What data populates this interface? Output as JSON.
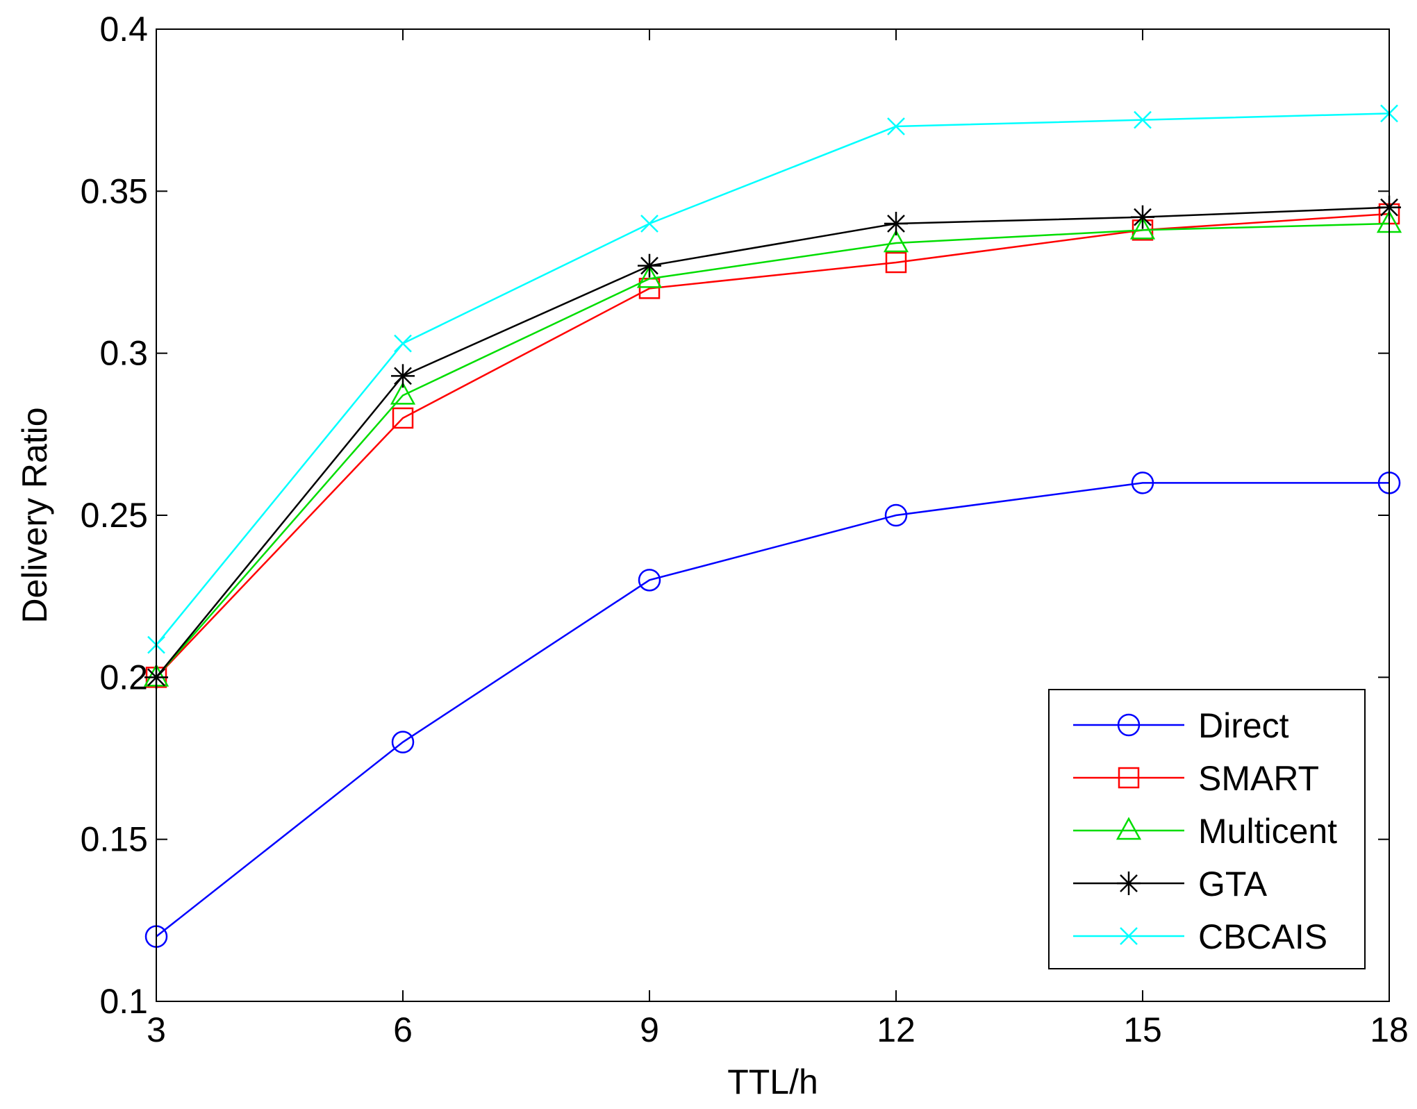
{
  "chart_data": {
    "type": "line",
    "title": "",
    "xlabel": "TTL/h",
    "ylabel": "Delivery Ratio",
    "x": [
      3,
      6,
      9,
      12,
      15,
      18
    ],
    "xlim": [
      3,
      18
    ],
    "ylim": [
      0.1,
      0.4
    ],
    "xticks": [
      3,
      6,
      9,
      12,
      15,
      18
    ],
    "xtick_labels": [
      "3",
      "6",
      "9",
      "12",
      "15",
      "18"
    ],
    "yticks": [
      0.1,
      0.15,
      0.2,
      0.25,
      0.3,
      0.35,
      0.4
    ],
    "ytick_labels": [
      "0.1",
      "0.15",
      "0.2",
      "0.25",
      "0.3",
      "0.35",
      "0.4"
    ],
    "grid": false,
    "legend_position": "bottom-right",
    "series": [
      {
        "name": "Direct",
        "color": "#0000ff",
        "marker": "circle",
        "values": [
          0.12,
          0.18,
          0.23,
          0.25,
          0.26,
          0.26
        ]
      },
      {
        "name": "SMART",
        "color": "#ff0000",
        "marker": "square",
        "values": [
          0.2,
          0.28,
          0.32,
          0.328,
          0.338,
          0.343
        ]
      },
      {
        "name": "Multicent",
        "color": "#00dd00",
        "marker": "triangle",
        "values": [
          0.2,
          0.287,
          0.323,
          0.334,
          0.338,
          0.34
        ]
      },
      {
        "name": "GTA",
        "color": "#000000",
        "marker": "star",
        "values": [
          0.2,
          0.293,
          0.327,
          0.34,
          0.342,
          0.345
        ]
      },
      {
        "name": "CBCAIS",
        "color": "#00ffff",
        "marker": "x",
        "values": [
          0.21,
          0.303,
          0.34,
          0.37,
          0.372,
          0.374
        ]
      }
    ]
  }
}
